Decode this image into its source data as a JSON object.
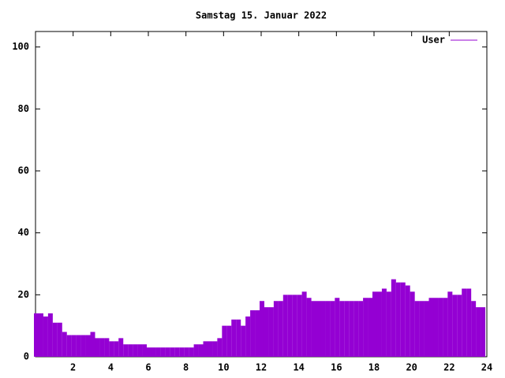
{
  "chart_data": {
    "type": "impulse",
    "title": "Samstag 15. Januar 2022",
    "x": [
      0,
      0.25,
      0.5,
      0.75,
      1,
      1.25,
      1.5,
      1.75,
      2,
      2.25,
      2.5,
      2.75,
      3,
      3.25,
      3.5,
      3.75,
      4,
      4.25,
      4.5,
      4.75,
      5,
      5.25,
      5.5,
      5.75,
      6,
      6.25,
      6.5,
      6.75,
      7,
      7.25,
      7.5,
      7.75,
      8,
      8.25,
      8.5,
      8.75,
      9,
      9.25,
      9.5,
      9.75,
      10,
      10.25,
      10.5,
      10.75,
      11,
      11.25,
      11.5,
      11.75,
      12,
      12.25,
      12.5,
      12.75,
      13,
      13.25,
      13.5,
      13.75,
      14,
      14.25,
      14.5,
      14.75,
      15,
      15.25,
      15.5,
      15.75,
      16,
      16.25,
      16.5,
      16.75,
      17,
      17.25,
      17.5,
      17.75,
      18,
      18.25,
      18.5,
      18.75,
      19,
      19.25,
      19.5,
      19.75,
      20,
      20.25,
      20.5,
      20.75,
      21,
      21.25,
      21.5,
      21.75,
      22,
      22.25,
      22.5,
      22.75,
      23,
      23.25,
      23.5,
      23.75
    ],
    "series": [
      {
        "name": "User",
        "color": "#9400d3",
        "values": [
          14,
          14,
          13,
          14,
          11,
          11,
          8,
          7,
          7,
          7,
          7,
          7,
          8,
          6,
          6,
          6,
          5,
          5,
          6,
          4,
          4,
          4,
          4,
          4,
          3,
          3,
          3,
          3,
          3,
          3,
          3,
          3,
          3,
          3,
          4,
          4,
          5,
          5,
          5,
          6,
          10,
          10,
          12,
          12,
          10,
          13,
          15,
          15,
          18,
          16,
          16,
          18,
          18,
          20,
          20,
          20,
          20,
          21,
          19,
          18,
          18,
          18,
          18,
          18,
          19,
          18,
          18,
          18,
          18,
          18,
          19,
          19,
          21,
          21,
          22,
          21,
          25,
          24,
          24,
          23,
          21,
          18,
          18,
          18,
          19,
          19,
          19,
          19,
          21,
          20,
          20,
          22,
          22,
          18,
          16,
          16
        ]
      }
    ],
    "xlim": [
      0,
      24
    ],
    "xticks": [
      2,
      4,
      6,
      8,
      10,
      12,
      14,
      16,
      18,
      20,
      22,
      24
    ],
    "ylim": [
      0,
      105
    ],
    "yticks": [
      0,
      20,
      40,
      60,
      80,
      100
    ],
    "legend": "top-right"
  }
}
